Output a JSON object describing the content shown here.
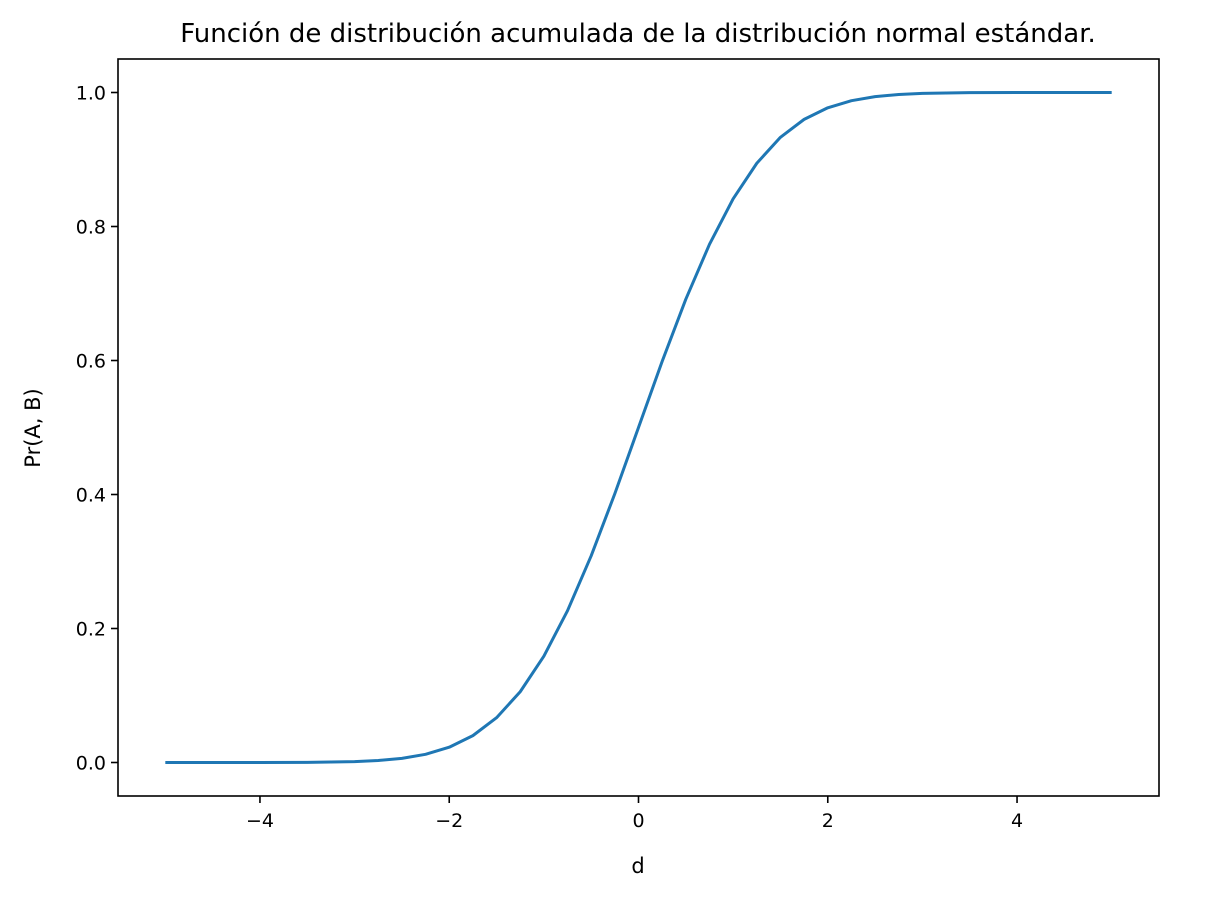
{
  "chart_data": {
    "type": "line",
    "title": "Función de distribución acumulada de la distribución normal estándar.",
    "xlabel": "d",
    "ylabel": "Pr(A, B)",
    "xlim": [
      -5.5,
      5.5
    ],
    "ylim": [
      -0.05,
      1.05
    ],
    "x_ticks": [
      -4,
      -2,
      0,
      2,
      4
    ],
    "x_tick_labels": [
      "−4",
      "−2",
      "0",
      "2",
      "4"
    ],
    "y_ticks": [
      0.0,
      0.2,
      0.4,
      0.6,
      0.8,
      1.0
    ],
    "y_tick_labels": [
      "0.0",
      "0.2",
      "0.4",
      "0.6",
      "0.8",
      "1.0"
    ],
    "grid": false,
    "legend": "none",
    "series": [
      {
        "color": "#1f77b4",
        "x": [
          -5.0,
          -4.5,
          -4.0,
          -3.5,
          -3.0,
          -2.75,
          -2.5,
          -2.25,
          -2.0,
          -1.75,
          -1.5,
          -1.25,
          -1.0,
          -0.75,
          -0.5,
          -0.25,
          0.0,
          0.25,
          0.5,
          0.75,
          1.0,
          1.25,
          1.5,
          1.75,
          2.0,
          2.25,
          2.5,
          2.75,
          3.0,
          3.5,
          4.0,
          4.5,
          5.0
        ],
        "y": [
          0.0,
          0.0,
          0.0,
          0.0002,
          0.0013,
          0.003,
          0.0062,
          0.0122,
          0.0228,
          0.0401,
          0.0668,
          0.1056,
          0.1587,
          0.2266,
          0.3085,
          0.4013,
          0.5,
          0.5987,
          0.6915,
          0.7734,
          0.8413,
          0.8944,
          0.9332,
          0.9599,
          0.9772,
          0.9878,
          0.9938,
          0.997,
          0.9987,
          0.9998,
          1.0,
          1.0,
          1.0
        ]
      }
    ]
  }
}
